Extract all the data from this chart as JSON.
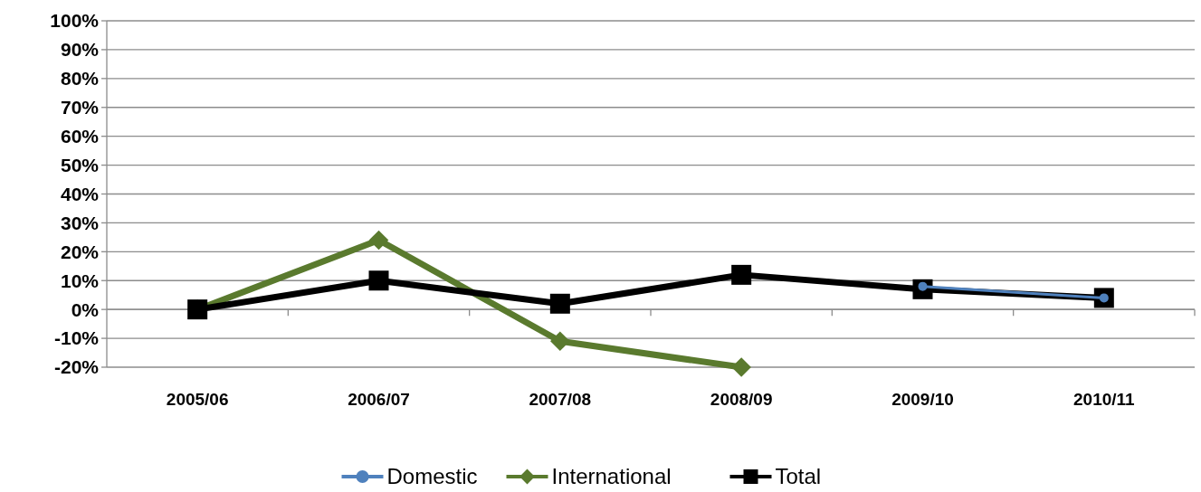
{
  "chart_data": {
    "type": "line",
    "categories": [
      "2005/06",
      "2006/07",
      "2007/08",
      "2008/09",
      "2009/10",
      "2010/11"
    ],
    "series": [
      {
        "name": "Domestic",
        "color": "#4f81bd",
        "marker": "circle",
        "values": [
          null,
          null,
          null,
          null,
          8,
          4
        ]
      },
      {
        "name": "International",
        "color": "#5a7a2e",
        "marker": "diamond",
        "values": [
          0,
          24,
          -11,
          -20,
          null,
          null
        ]
      },
      {
        "name": "Total",
        "color": "#000000",
        "marker": "square",
        "values": [
          0,
          10,
          2,
          12,
          7,
          4
        ]
      }
    ],
    "ylim": [
      -20,
      100
    ],
    "yticks": [
      {
        "value": -20,
        "label": "-20%"
      },
      {
        "value": -10,
        "label": "-10%"
      },
      {
        "value": 0,
        "label": "0%"
      },
      {
        "value": 10,
        "label": "10%"
      },
      {
        "value": 20,
        "label": "20%"
      },
      {
        "value": 30,
        "label": "30%"
      },
      {
        "value": 40,
        "label": "40%"
      },
      {
        "value": 50,
        "label": "50%"
      },
      {
        "value": 60,
        "label": "60%"
      },
      {
        "value": 70,
        "label": "70%"
      },
      {
        "value": 80,
        "label": "80%"
      },
      {
        "value": 90,
        "label": "90%"
      },
      {
        "value": 100,
        "label": "100%"
      }
    ],
    "grid": "y",
    "legend": "bottom"
  }
}
